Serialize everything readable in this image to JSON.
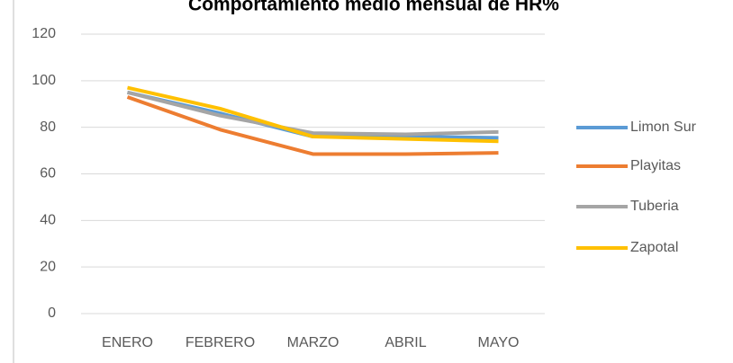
{
  "chart_data": {
    "type": "line",
    "title": "Comportamiento medio mensual de HR%",
    "categories": [
      "ENERO",
      "FEBRERO",
      "MARZO",
      "ABRIL",
      "MAYO"
    ],
    "series": [
      {
        "name": "Limon Sur",
        "color": "#5b9bd5",
        "values": [
          95,
          86,
          76,
          76,
          75.5
        ]
      },
      {
        "name": "Playitas",
        "color": "#ed7d31",
        "values": [
          93,
          79,
          68.5,
          68.5,
          69
        ]
      },
      {
        "name": "Tuberia",
        "color": "#a5a5a5",
        "values": [
          95,
          85,
          77.5,
          77,
          78
        ]
      },
      {
        "name": "Zapotal",
        "color": "#ffc000",
        "values": [
          97,
          88,
          76,
          75,
          74
        ]
      }
    ],
    "ylim": [
      0,
      120
    ],
    "yticks": [
      0,
      20,
      40,
      60,
      80,
      100,
      120
    ],
    "grid": true,
    "legend": "right"
  }
}
